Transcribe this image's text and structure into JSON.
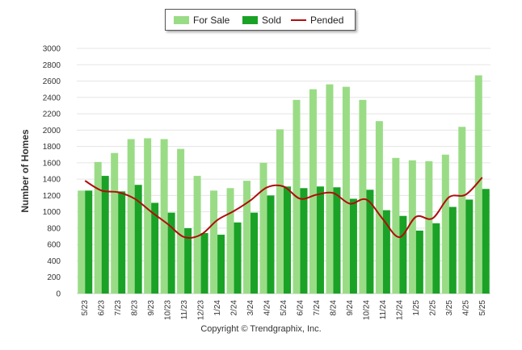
{
  "legend": {
    "for_sale": "For Sale",
    "sold": "Sold",
    "pended": "Pended"
  },
  "footer": {
    "copyright": "Copyright © Trendgraphix, Inc."
  },
  "colors": {
    "for_sale": "#9adc86",
    "sold": "#1aa226",
    "pended": "#b10d0d",
    "grid": "#e5e5e5"
  },
  "chart_data": {
    "type": "bar",
    "ylabel": "Number of Homes",
    "xlabel": "",
    "ylim": [
      0,
      3000
    ],
    "yticks": [
      0,
      200,
      400,
      600,
      800,
      1000,
      1200,
      1400,
      1600,
      1800,
      2000,
      2200,
      2400,
      2600,
      2800,
      3000
    ],
    "grid": true,
    "legend_position": "top",
    "categories": [
      "5/23",
      "6/23",
      "7/23",
      "8/23",
      "9/23",
      "10/23",
      "11/23",
      "12/23",
      "1/24",
      "2/24",
      "3/24",
      "4/24",
      "5/24",
      "6/24",
      "7/24",
      "8/24",
      "9/24",
      "10/24",
      "11/24",
      "12/24",
      "1/25",
      "2/25",
      "3/25",
      "4/25",
      "5/25"
    ],
    "series": [
      {
        "name": "For Sale",
        "kind": "bar",
        "values": [
          1260,
          1610,
          1720,
          1890,
          1900,
          1890,
          1770,
          1440,
          1260,
          1290,
          1380,
          1600,
          2010,
          2370,
          2500,
          2560,
          2530,
          2370,
          2110,
          1660,
          1630,
          1620,
          1700,
          2040,
          2670
        ]
      },
      {
        "name": "Sold",
        "kind": "bar",
        "values": [
          1260,
          1440,
          1250,
          1330,
          1110,
          990,
          800,
          740,
          720,
          870,
          990,
          1200,
          1310,
          1290,
          1310,
          1300,
          1160,
          1270,
          1020,
          950,
          770,
          860,
          1060,
          1150,
          1280
        ]
      },
      {
        "name": "Pended",
        "kind": "line",
        "values": [
          1380,
          1260,
          1240,
          1160,
          1000,
          850,
          690,
          720,
          900,
          1010,
          1140,
          1300,
          1310,
          1160,
          1210,
          1230,
          1100,
          1150,
          910,
          690,
          940,
          920,
          1180,
          1210,
          1420
        ]
      }
    ]
  }
}
